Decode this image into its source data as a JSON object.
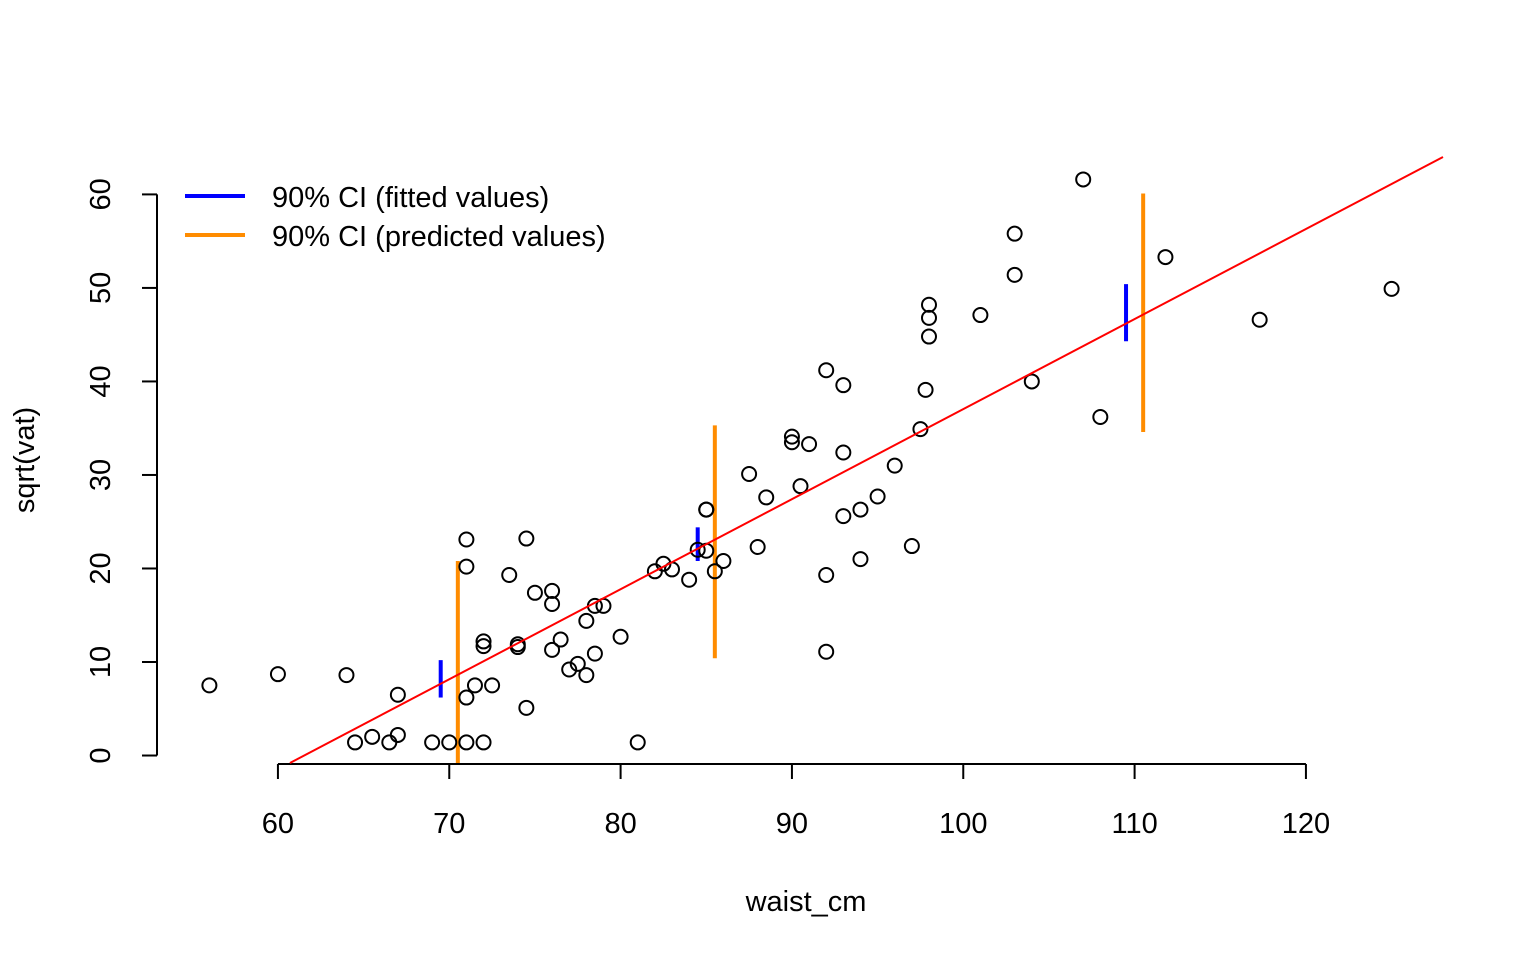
{
  "chart_data": {
    "type": "scatter",
    "xlabel": "waist_cm",
    "ylabel": "sqrt(vat)",
    "xlim": [
      53.0,
      128.0
    ],
    "ylim": [
      -0.8,
      64.0
    ],
    "x_ticks": [
      60,
      70,
      80,
      90,
      100,
      110,
      120
    ],
    "y_ticks": [
      0,
      10,
      20,
      30,
      40,
      50,
      60
    ],
    "x_tick_labels": [
      "60",
      "70",
      "80",
      "90",
      "100",
      "110",
      "120"
    ],
    "y_tick_labels": [
      "0",
      "10",
      "20",
      "30",
      "40",
      "50",
      "60"
    ],
    "legend_position": "top-left",
    "legend": [
      {
        "label": "90% CI (fitted values)",
        "color": "#0000ff"
      },
      {
        "label": "90% CI (predicted values)",
        "color": "#ff8c00"
      }
    ],
    "points": [
      {
        "x": 56.0,
        "y": 7.5
      },
      {
        "x": 60.0,
        "y": 8.7
      },
      {
        "x": 64.0,
        "y": 8.6
      },
      {
        "x": 64.5,
        "y": 1.4
      },
      {
        "x": 65.5,
        "y": 2.0
      },
      {
        "x": 66.5,
        "y": 1.4
      },
      {
        "x": 67.0,
        "y": 2.2
      },
      {
        "x": 67.0,
        "y": 6.5
      },
      {
        "x": 69.0,
        "y": 1.4
      },
      {
        "x": 70.0,
        "y": 1.4
      },
      {
        "x": 71.0,
        "y": 1.4
      },
      {
        "x": 72.0,
        "y": 1.4
      },
      {
        "x": 71.0,
        "y": 6.2
      },
      {
        "x": 71.5,
        "y": 7.5
      },
      {
        "x": 72.5,
        "y": 7.5
      },
      {
        "x": 71.0,
        "y": 20.2
      },
      {
        "x": 71.0,
        "y": 23.1
      },
      {
        "x": 72.0,
        "y": 11.7
      },
      {
        "x": 72.0,
        "y": 12.2
      },
      {
        "x": 73.5,
        "y": 19.3
      },
      {
        "x": 74.0,
        "y": 11.9
      },
      {
        "x": 74.0,
        "y": 11.6
      },
      {
        "x": 74.5,
        "y": 5.1
      },
      {
        "x": 74.5,
        "y": 23.2
      },
      {
        "x": 75.0,
        "y": 17.4
      },
      {
        "x": 76.0,
        "y": 17.6
      },
      {
        "x": 76.0,
        "y": 16.2
      },
      {
        "x": 76.0,
        "y": 11.3
      },
      {
        "x": 76.5,
        "y": 12.4
      },
      {
        "x": 77.0,
        "y": 9.2
      },
      {
        "x": 77.5,
        "y": 9.8
      },
      {
        "x": 78.0,
        "y": 8.6
      },
      {
        "x": 78.0,
        "y": 14.4
      },
      {
        "x": 78.5,
        "y": 10.9
      },
      {
        "x": 78.5,
        "y": 16.0
      },
      {
        "x": 79.0,
        "y": 16.0
      },
      {
        "x": 80.0,
        "y": 12.7
      },
      {
        "x": 81.0,
        "y": 1.4
      },
      {
        "x": 82.0,
        "y": 19.7
      },
      {
        "x": 82.5,
        "y": 20.5
      },
      {
        "x": 83.0,
        "y": 19.9
      },
      {
        "x": 84.0,
        "y": 18.8
      },
      {
        "x": 84.5,
        "y": 22.0
      },
      {
        "x": 85.0,
        "y": 21.9
      },
      {
        "x": 85.0,
        "y": 26.3
      },
      {
        "x": 85.0,
        "y": 26.3
      },
      {
        "x": 85.5,
        "y": 19.7
      },
      {
        "x": 86.0,
        "y": 20.8
      },
      {
        "x": 87.5,
        "y": 30.1
      },
      {
        "x": 88.0,
        "y": 22.3
      },
      {
        "x": 88.5,
        "y": 27.6
      },
      {
        "x": 90.0,
        "y": 34.1
      },
      {
        "x": 90.0,
        "y": 33.5
      },
      {
        "x": 90.5,
        "y": 28.8
      },
      {
        "x": 91.0,
        "y": 33.3
      },
      {
        "x": 92.0,
        "y": 41.2
      },
      {
        "x": 92.0,
        "y": 19.3
      },
      {
        "x": 92.0,
        "y": 11.1
      },
      {
        "x": 93.0,
        "y": 39.6
      },
      {
        "x": 93.0,
        "y": 32.4
      },
      {
        "x": 93.0,
        "y": 25.6
      },
      {
        "x": 94.0,
        "y": 26.3
      },
      {
        "x": 94.0,
        "y": 21.0
      },
      {
        "x": 95.0,
        "y": 27.7
      },
      {
        "x": 96.0,
        "y": 31.0
      },
      {
        "x": 97.0,
        "y": 22.4
      },
      {
        "x": 97.5,
        "y": 34.9
      },
      {
        "x": 97.8,
        "y": 39.1
      },
      {
        "x": 98.0,
        "y": 48.2
      },
      {
        "x": 98.0,
        "y": 46.8
      },
      {
        "x": 98.0,
        "y": 44.8
      },
      {
        "x": 101.0,
        "y": 47.1
      },
      {
        "x": 103.0,
        "y": 55.8
      },
      {
        "x": 103.0,
        "y": 51.4
      },
      {
        "x": 104.0,
        "y": 40.0
      },
      {
        "x": 107.0,
        "y": 61.6
      },
      {
        "x": 108.0,
        "y": 36.2
      },
      {
        "x": 111.8,
        "y": 53.3
      },
      {
        "x": 117.3,
        "y": 46.6
      },
      {
        "x": 125.0,
        "y": 49.9
      }
    ],
    "regression_line": {
      "color": "#ff0000",
      "x": [
        60.7,
        128.0
      ],
      "y": [
        -0.8,
        64.0
      ]
    },
    "ci_fitted": [
      {
        "x": 69.5,
        "lower": 6.2,
        "upper": 10.2
      },
      {
        "x": 84.5,
        "lower": 20.8,
        "upper": 24.4
      },
      {
        "x": 109.5,
        "lower": 44.3,
        "upper": 50.4
      }
    ],
    "ci_predicted": [
      {
        "x": 70.5,
        "lower": -0.8,
        "upper": 20.8
      },
      {
        "x": 85.5,
        "lower": 10.4,
        "upper": 35.3
      },
      {
        "x": 110.5,
        "lower": 34.6,
        "upper": 60.1
      }
    ]
  }
}
